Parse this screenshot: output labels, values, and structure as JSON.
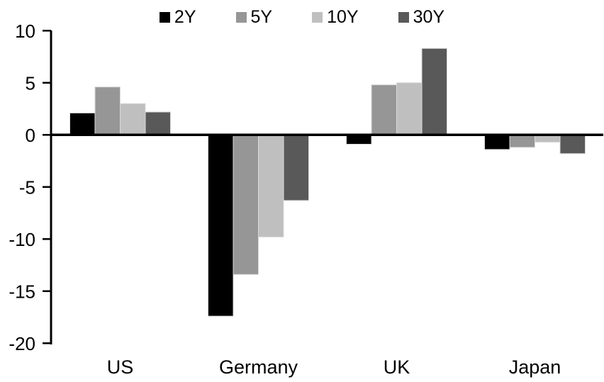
{
  "page": {
    "background": "#ffffff"
  },
  "chart_data": {
    "type": "bar",
    "title": "",
    "xlabel": "",
    "ylabel": "",
    "categories": [
      "US",
      "Germany",
      "UK",
      "Japan"
    ],
    "series": [
      {
        "name": "2Y",
        "color": "#000000",
        "values": [
          2.1,
          -17.4,
          -0.9,
          -1.4
        ]
      },
      {
        "name": "5Y",
        "color": "#969696",
        "values": [
          4.6,
          -13.4,
          4.8,
          -1.2
        ]
      },
      {
        "name": "10Y",
        "color": "#bfbfbf",
        "values": [
          3.0,
          -9.8,
          5.0,
          -0.7
        ]
      },
      {
        "name": "30Y",
        "color": "#595959",
        "values": [
          2.2,
          -6.3,
          8.3,
          -1.8
        ]
      }
    ],
    "ylim": [
      -20,
      10
    ],
    "yticks": [
      10,
      5,
      0,
      -5,
      -10,
      -15,
      -20
    ],
    "grid": false,
    "legend_position": "top",
    "axis_color": "#000000",
    "bar_border_color": "#d9d9d9"
  }
}
